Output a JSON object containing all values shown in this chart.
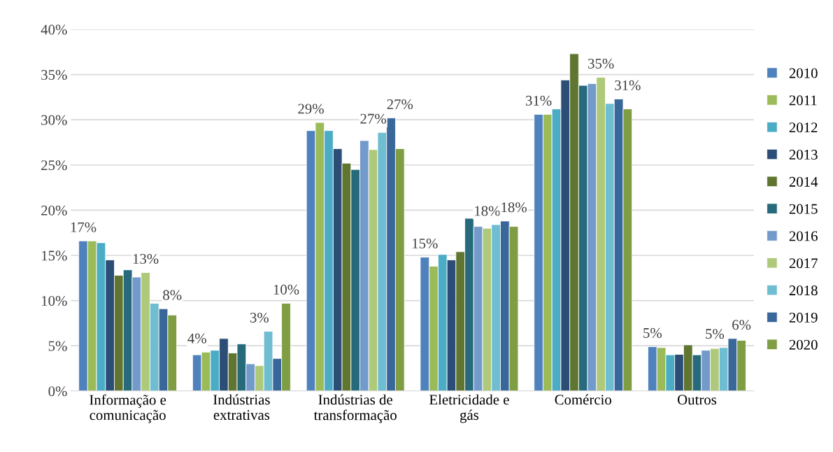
{
  "chart_data": {
    "type": "bar",
    "categories": [
      "Informação e\ncomunicação",
      "Indústrias\nextrativas",
      "Indústrias de\ntransformação",
      "Eletricidade e\ngás",
      "Comércio",
      "Outros"
    ],
    "ylim": [
      0,
      40
    ],
    "yticks": [
      {
        "value": 0,
        "label": "0%"
      },
      {
        "value": 5,
        "label": "5%"
      },
      {
        "value": 10,
        "label": "10%"
      },
      {
        "value": 15,
        "label": "15%"
      },
      {
        "value": 20,
        "label": "20%"
      },
      {
        "value": 25,
        "label": "25%"
      },
      {
        "value": 30,
        "label": "30%"
      },
      {
        "value": 35,
        "label": "35%"
      },
      {
        "value": 40,
        "label": "40%"
      }
    ],
    "grid": "y",
    "legend": "right",
    "series": [
      {
        "name": "2010",
        "color": "#4f81bd",
        "values": [
          16.6,
          4.0,
          28.8,
          14.8,
          30.6,
          4.9
        ],
        "value_labels": [
          "17%",
          "4%",
          "29%",
          "15%",
          "31%",
          "5%"
        ]
      },
      {
        "name": "2011",
        "color": "#9bbb59",
        "values": [
          16.6,
          4.3,
          29.7,
          13.8,
          30.6,
          4.8
        ]
      },
      {
        "name": "2012",
        "color": "#4bacc6",
        "values": [
          16.4,
          4.5,
          28.8,
          15.1,
          31.2,
          4.0
        ]
      },
      {
        "name": "2013",
        "color": "#2c4d75",
        "values": [
          14.5,
          5.8,
          26.8,
          14.5,
          34.4,
          4.05
        ]
      },
      {
        "name": "2014",
        "color": "#5f7530",
        "values": [
          12.8,
          4.2,
          25.2,
          15.4,
          37.3,
          5.1
        ]
      },
      {
        "name": "2015",
        "color": "#276a7c",
        "values": [
          13.4,
          5.2,
          24.5,
          19.1,
          33.8,
          4.0
        ]
      },
      {
        "name": "2016",
        "color": "#729aca",
        "values": [
          12.6,
          3.0,
          27.7,
          18.2,
          34.0,
          4.5
        ]
      },
      {
        "name": "2017",
        "color": "#afc97a",
        "values": [
          13.1,
          2.8,
          26.7,
          18.0,
          34.7,
          4.7
        ],
        "value_labels": [
          "13%",
          "3%",
          "27%",
          "18%",
          "35%",
          "5%"
        ]
      },
      {
        "name": "2018",
        "color": "#6fbdd1",
        "values": [
          9.7,
          6.6,
          28.6,
          18.4,
          31.8,
          4.8
        ]
      },
      {
        "name": "2019",
        "color": "#3a6799",
        "values": [
          9.1,
          3.6,
          30.2,
          18.8,
          32.3,
          5.8
        ]
      },
      {
        "name": "2020",
        "color": "#7f9d43",
        "values": [
          8.4,
          9.7,
          26.8,
          18.2,
          31.2,
          5.6
        ],
        "value_labels": [
          "8%",
          "10%",
          "27%",
          "18%",
          "31%",
          "6%"
        ]
      }
    ]
  }
}
